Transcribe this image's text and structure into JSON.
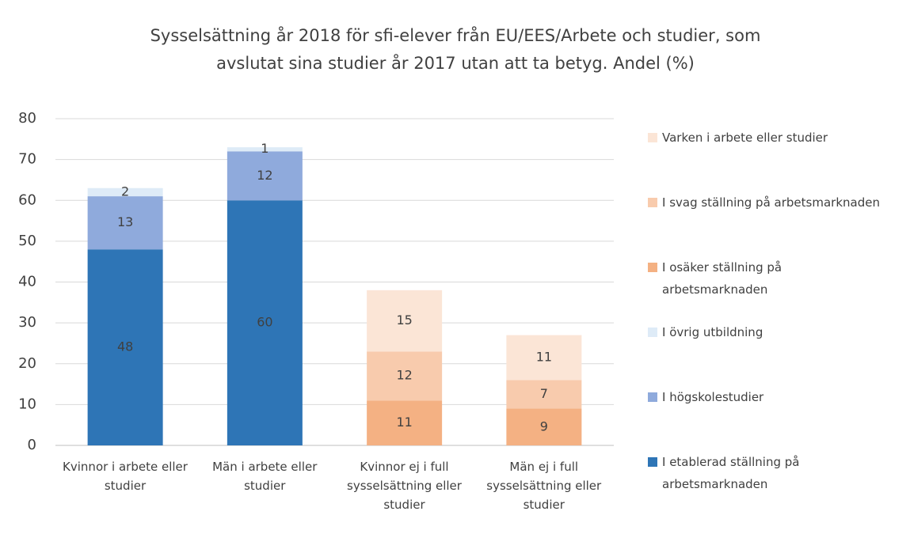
{
  "chart_data": {
    "type": "stacked_bar",
    "title": "Sysselsättning år 2018 för sfi-elever från EU/EES/Arbete och studier, som avslutat sina studier år 2017 utan att ta betyg. Andel (%)",
    "categories": [
      "Kvinnor i arbete eller studier",
      "Män i arbete eller studier",
      "Kvinnor ej i full sysselsättning eller studier",
      "Män ej i full sysselsättning eller studier"
    ],
    "series": [
      {
        "name": "I etablerad ställning på arbetsmarknaden",
        "color": "#2e75b6",
        "values": [
          48,
          60,
          null,
          null
        ]
      },
      {
        "name": "I högskolestudier",
        "color": "#8faadc",
        "values": [
          13,
          12,
          null,
          null
        ]
      },
      {
        "name": "I övrig utbildning",
        "color": "#deebf7",
        "values": [
          2,
          1,
          null,
          null
        ]
      },
      {
        "name": "I osäker ställning på arbetsmarknaden",
        "color": "#f4b183",
        "values": [
          null,
          null,
          11,
          9
        ]
      },
      {
        "name": "I svag ställning på arbetsmarknaden",
        "color": "#f8cbad",
        "values": [
          null,
          null,
          12,
          7
        ]
      },
      {
        "name": "Varken i arbete eller studier",
        "color": "#fbe5d6",
        "values": [
          null,
          null,
          15,
          11
        ]
      }
    ],
    "ylim": [
      0,
      80
    ],
    "yticks": [
      0,
      10,
      20,
      30,
      40,
      50,
      60,
      70,
      80
    ],
    "grid": true,
    "legend": "right"
  }
}
